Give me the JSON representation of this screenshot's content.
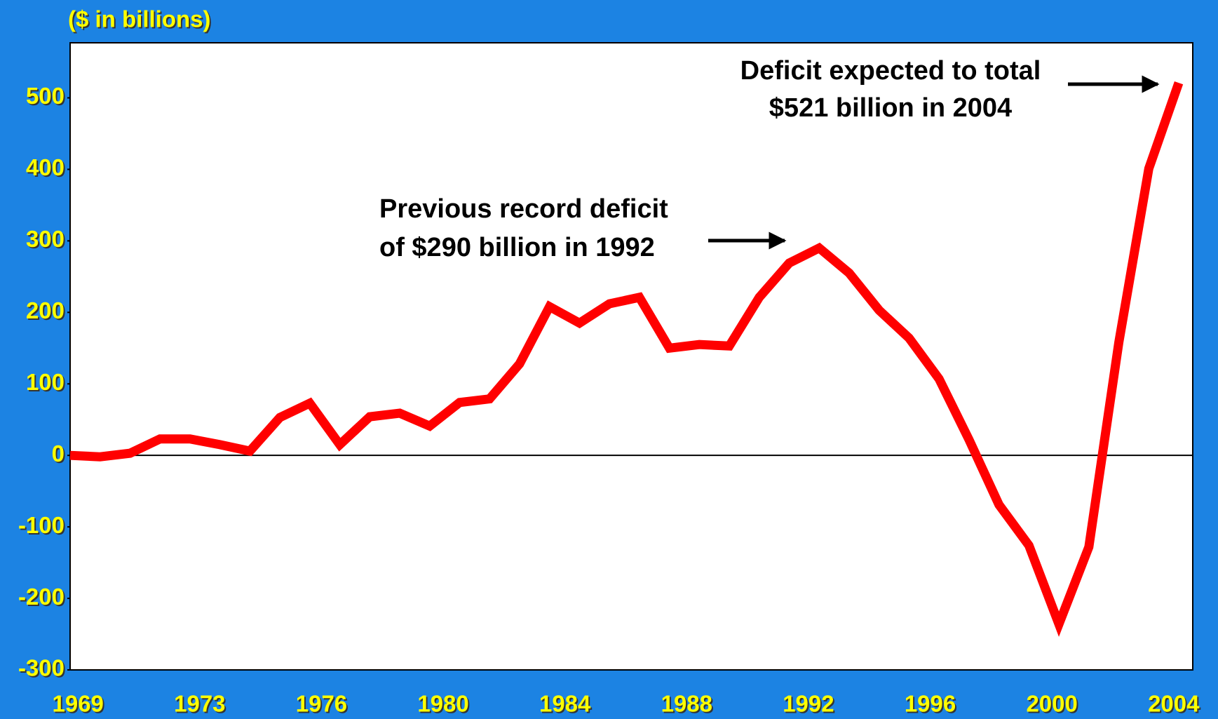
{
  "chart_data": {
    "type": "line",
    "title": "($ in billions)",
    "x_tick_labels": [
      "1969",
      "1973",
      "1976",
      "1980",
      "1984",
      "1988",
      "1992",
      "1996",
      "2000",
      "2004"
    ],
    "values": [
      0,
      -2,
      3,
      23,
      23,
      15,
      6,
      53,
      73,
      15,
      54,
      59,
      41,
      74,
      79,
      128,
      208,
      185,
      212,
      221,
      150,
      155,
      153,
      221,
      269,
      290,
      255,
      203,
      164,
      107,
      22,
      -69,
      -126,
      -236,
      -128,
      158,
      401,
      521
    ],
    "color": "#ff0000",
    "ylim": [
      -300,
      577
    ],
    "yticks": [
      -300,
      -200,
      -100,
      0,
      100,
      200,
      300,
      400,
      500
    ],
    "annotations": [
      {
        "lines": [
          "Deficit expected to total",
          "$521 billion in 2004"
        ]
      },
      {
        "lines": [
          "Previous record deficit",
          "of $290 billion in 1992"
        ]
      }
    ]
  }
}
